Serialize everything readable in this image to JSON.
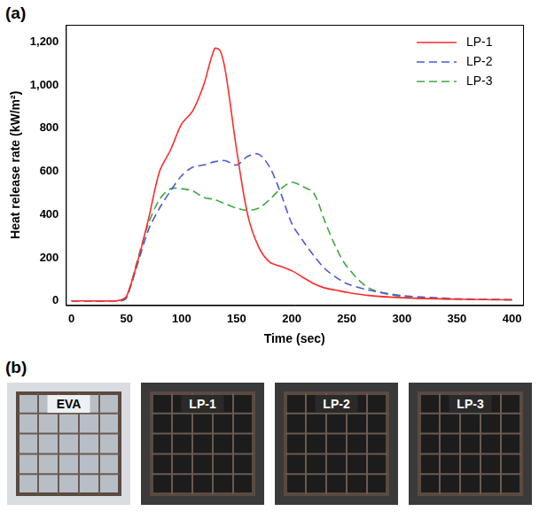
{
  "chart_data": {
    "type": "line",
    "x_label": "Time (sec)",
    "y_label": "Heat release rate (kW/m²)",
    "x": [
      0,
      40,
      45,
      50,
      60,
      70,
      80,
      90,
      100,
      110,
      120,
      130,
      135,
      140,
      150,
      160,
      170,
      180,
      190,
      200,
      210,
      220,
      230,
      240,
      250,
      270,
      300,
      350,
      400
    ],
    "series": [
      {
        "name": "LP-1",
        "color": "#ff2a2a",
        "line_style": "solid",
        "values": [
          0,
          0,
          5,
          20,
          180,
          380,
          600,
          700,
          820,
          880,
          1000,
          1170,
          1160,
          1060,
          700,
          400,
          250,
          180,
          160,
          140,
          110,
          80,
          60,
          50,
          40,
          25,
          15,
          8,
          5
        ]
      },
      {
        "name": "LP-2",
        "color": "#4a5ad8",
        "line_style": "dashed",
        "values": [
          0,
          0,
          0,
          15,
          170,
          330,
          430,
          510,
          580,
          620,
          630,
          645,
          650,
          650,
          630,
          670,
          680,
          620,
          500,
          360,
          280,
          210,
          150,
          110,
          80,
          50,
          25,
          10,
          5
        ]
      },
      {
        "name": "LP-3",
        "color": "#3caa3c",
        "line_style": "dashed",
        "values": [
          0,
          0,
          0,
          15,
          190,
          360,
          470,
          520,
          520,
          510,
          480,
          470,
          460,
          450,
          430,
          420,
          430,
          470,
          520,
          550,
          530,
          500,
          370,
          250,
          160,
          60,
          20,
          8,
          5
        ]
      }
    ],
    "xlim": [
      -5,
      410
    ],
    "xticks": [
      0,
      50,
      100,
      150,
      200,
      250,
      300,
      350,
      400
    ],
    "ylim": [
      -20,
      1280
    ],
    "yticks": [
      0,
      200,
      400,
      600,
      800,
      1000,
      1200
    ],
    "grid": false,
    "legend": "top-right"
  },
  "panel_labels": [
    "(a)",
    "(b)"
  ],
  "photos": {
    "labels": [
      "EVA",
      "LP-1",
      "LP-2",
      "LP-3"
    ]
  }
}
